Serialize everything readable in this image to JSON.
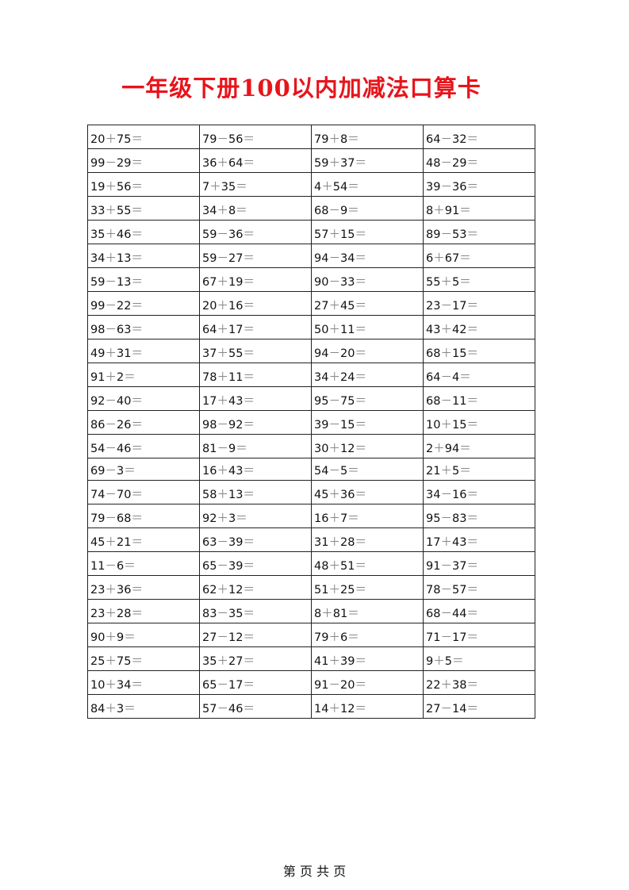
{
  "title": "一年级下册100以内加减法口算卡",
  "rows": [
    [
      "20+75=",
      "79-56=",
      "79+8=",
      "64-32="
    ],
    [
      "99-29=",
      "36+64=",
      "59+37=",
      "48-29="
    ],
    [
      "19+56=",
      "7+35=",
      "4+54=",
      "39-36="
    ],
    [
      "33+55=",
      "34+8=",
      "68-9=",
      "8+91="
    ],
    [
      "35+46=",
      "59-36=",
      "57+15=",
      "89-53="
    ],
    [
      "34+13=",
      "59-27=",
      "94-34=",
      "6+67="
    ],
    [
      "59-13=",
      "67+19=",
      "90-33=",
      "55+5="
    ],
    [
      "99-22=",
      "20+16=",
      "27+45=",
      "23-17="
    ],
    [
      "98-63=",
      "64+17=",
      "50+11=",
      "43+42="
    ],
    [
      "49+31=",
      "37+55=",
      "94-20=",
      "68+15="
    ],
    [
      "91+2=",
      "78+11=",
      "34+24=",
      "64-4="
    ],
    [
      "92-40=",
      "17+43=",
      "95-75=",
      "68-11="
    ],
    [
      "86-26=",
      "98-92=",
      "39-15=",
      "10+15="
    ],
    [
      "54-46=",
      "81-9=",
      "30+12=",
      "2+94="
    ],
    [
      "69-3=",
      "16+43=",
      "54-5=",
      "21+5="
    ],
    [
      "74-70=",
      "58+13=",
      "45+36=",
      "34-16="
    ],
    [
      "79-68=",
      "92+3=",
      "16+7=",
      "95-83="
    ],
    [
      "45+21=",
      "63-39=",
      "31+28=",
      "17+43="
    ],
    [
      "11-6=",
      "65-39=",
      "48+51=",
      "91-37="
    ],
    [
      "23+36=",
      "62+12=",
      "51+25=",
      "78-57="
    ],
    [
      "23+28=",
      "83-35=",
      "8+81=",
      "68-44="
    ],
    [
      "90+9=",
      "27-12=",
      "79+6=",
      "71-17="
    ],
    [
      "25+75=",
      "35+27=",
      "41+39=",
      "9+5="
    ],
    [
      "10+34=",
      "65-17=",
      "91-20=",
      "22+38="
    ],
    [
      "84+3=",
      "57-46=",
      "14+12=",
      "27-14="
    ]
  ],
  "footer": "第 页 共 页",
  "colors": {
    "title": "#e8141b",
    "operator": "#888888"
  }
}
